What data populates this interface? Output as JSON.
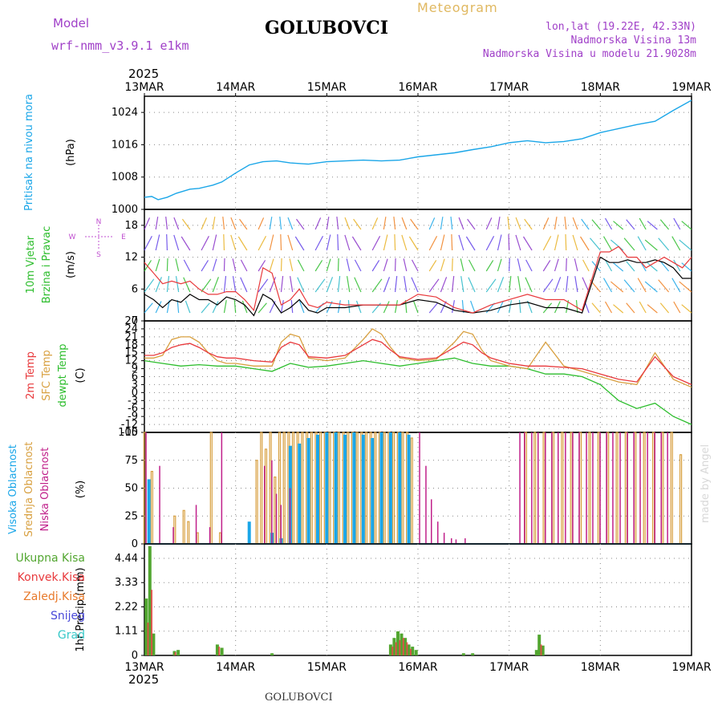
{
  "header": {
    "model_label": "Model",
    "model_name": "wrf-nmm_v3.9.1  e1km",
    "station": "GOLUBOVCI",
    "chart_title": "Meteogram",
    "coords": "lon,lat (19.22E, 42.33N)",
    "elevation": "Nadmorska Visina 13m",
    "model_elevation": "Nadmorska Visina u modelu 21.9028m",
    "year": "2025",
    "credit": "made by Angel",
    "footer_station": "GOLUBOVCI"
  },
  "colors": {
    "pressure": "#1aa6e8",
    "temp2m": "#e8393c",
    "sfc_temp": "#d8a040",
    "dewpoint": "#2cbd2c",
    "wind_speed": "#000000",
    "gust": "#e8393c",
    "high_cloud": "#1aa6e8",
    "mid_cloud": "#d8a040",
    "low_cloud": "#c0208a",
    "total_precip": "#52a630",
    "conv_precip": "#e8393c",
    "frozen_precip": "#e87a2c",
    "snow": "#4848d8",
    "hail": "#38c8c8",
    "compass": "#c050d0"
  },
  "chart_data": [
    {
      "type": "line",
      "panel": "pressure",
      "ylabel": [
        "Pritisak na nivou mora",
        "(hPa)"
      ],
      "ylim": [
        1000,
        1028
      ],
      "yticks": [
        1000,
        1008,
        1016,
        1024
      ],
      "x_categories": [
        "13MAR",
        "14MAR",
        "15MAR",
        "16MAR",
        "17MAR",
        "18MAR",
        "19MAR"
      ],
      "x_days": [
        0,
        6
      ],
      "grid": true,
      "series": [
        {
          "x": [
            0,
            0.08,
            0.15,
            0.25,
            0.35,
            0.5,
            0.6,
            0.75,
            0.85,
            1.0,
            1.15,
            1.3,
            1.45,
            1.6,
            1.8,
            2.0,
            2.2,
            2.4,
            2.6,
            2.8,
            3.0,
            3.2,
            3.4,
            3.6,
            3.8,
            4.0,
            4.2,
            4.4,
            4.6,
            4.8,
            5.0,
            5.2,
            5.4,
            5.6,
            5.8,
            6.0
          ],
          "values": [
            1003.0,
            1003.2,
            1002.4,
            1003.0,
            1004.0,
            1005.0,
            1005.2,
            1006.0,
            1006.8,
            1009.0,
            1011.0,
            1011.8,
            1012.0,
            1011.5,
            1011.2,
            1011.8,
            1012.0,
            1012.2,
            1012.0,
            1012.2,
            1013.0,
            1013.5,
            1014.0,
            1014.8,
            1015.5,
            1016.5,
            1017.0,
            1016.5,
            1016.8,
            1017.5,
            1019.0,
            1020.0,
            1021.0,
            1021.8,
            1024.5,
            1027.0
          ]
        }
      ]
    },
    {
      "type": "line",
      "panel": "wind",
      "ylabel": [
        "10m Vjetar",
        "Brzina i Pravac",
        "(m/s)"
      ],
      "ylim": [
        0,
        21
      ],
      "yticks": [
        0,
        6,
        12,
        18
      ],
      "compass": {
        "n": "N",
        "s": "S",
        "e": "E",
        "w": "W"
      },
      "series": [
        {
          "name": "speed",
          "x": [
            0,
            0.1,
            0.2,
            0.3,
            0.4,
            0.5,
            0.6,
            0.7,
            0.8,
            0.9,
            1.0,
            1.1,
            1.2,
            1.3,
            1.4,
            1.5,
            1.6,
            1.7,
            1.8,
            1.9,
            2.0,
            2.2,
            2.4,
            2.6,
            2.8,
            3.0,
            3.2,
            3.4,
            3.6,
            3.8,
            4.0,
            4.2,
            4.4,
            4.6,
            4.8,
            5.0,
            5.1,
            5.2,
            5.3,
            5.4,
            5.5,
            5.6,
            5.7,
            5.8,
            5.9,
            6.0
          ],
          "values": [
            5,
            4,
            2.5,
            4,
            3.5,
            5,
            4,
            4,
            3,
            4.5,
            4,
            3,
            1,
            5,
            4,
            1.5,
            2.5,
            4,
            2,
            1.5,
            2.5,
            2.5,
            3,
            3,
            3,
            4,
            3.5,
            2,
            1.5,
            2,
            3,
            3.5,
            2.5,
            2.5,
            1.5,
            12,
            11,
            11,
            11.5,
            11,
            11,
            11.5,
            11,
            10,
            8,
            8
          ]
        },
        {
          "name": "gust",
          "x": [
            0,
            0.1,
            0.2,
            0.3,
            0.4,
            0.5,
            0.6,
            0.7,
            0.8,
            0.9,
            1.0,
            1.1,
            1.2,
            1.3,
            1.4,
            1.5,
            1.6,
            1.7,
            1.8,
            1.9,
            2.0,
            2.2,
            2.4,
            2.6,
            2.8,
            3.0,
            3.2,
            3.4,
            3.6,
            3.8,
            4.0,
            4.2,
            4.4,
            4.6,
            4.8,
            5.0,
            5.1,
            5.2,
            5.3,
            5.4,
            5.5,
            5.6,
            5.7,
            5.8,
            5.9,
            6.0
          ],
          "values": [
            11,
            9,
            7,
            7.5,
            7,
            7.5,
            6,
            5,
            5,
            5.5,
            5.5,
            4,
            2,
            10,
            9,
            3,
            4,
            6,
            3,
            2.5,
            3.5,
            3,
            3,
            3,
            3,
            5,
            4.5,
            2.5,
            1.5,
            3,
            4,
            5,
            4,
            4,
            2,
            13,
            13,
            14,
            12,
            12,
            10,
            11,
            12,
            11,
            10,
            12
          ]
        }
      ]
    },
    {
      "type": "line",
      "panel": "temperature",
      "ylabel": [
        "2m Temp",
        "SFC Temp",
        "dewpt Temp",
        "(C)"
      ],
      "ylim": [
        -15,
        27
      ],
      "yticks": [
        -15,
        -12,
        -9,
        -6,
        -3,
        0,
        3,
        6,
        9,
        12,
        15,
        18,
        21,
        24,
        27
      ],
      "series": [
        {
          "name": "2m Temp",
          "x": [
            0,
            0.1,
            0.2,
            0.3,
            0.4,
            0.5,
            0.6,
            0.7,
            0.8,
            0.9,
            1.0,
            1.2,
            1.4,
            1.5,
            1.6,
            1.7,
            1.8,
            2.0,
            2.2,
            2.4,
            2.5,
            2.6,
            2.7,
            2.8,
            3.0,
            3.2,
            3.4,
            3.5,
            3.6,
            3.7,
            3.8,
            4.0,
            4.2,
            4.4,
            4.6,
            4.8,
            5.0,
            5.2,
            5.4,
            5.6,
            5.8,
            6.0
          ],
          "values": [
            14,
            14,
            15,
            17,
            18,
            18.5,
            17,
            15,
            13.5,
            13,
            13,
            12,
            11.5,
            17,
            19,
            18,
            13.5,
            13,
            14,
            18,
            20,
            19,
            16,
            13.5,
            12.5,
            13,
            17,
            19,
            18,
            15,
            13,
            11,
            10,
            10,
            9.5,
            9,
            7,
            5,
            4,
            13.5,
            6,
            3
          ]
        },
        {
          "name": "SFC Temp",
          "x": [
            0,
            0.1,
            0.2,
            0.3,
            0.4,
            0.5,
            0.6,
            0.7,
            0.8,
            0.9,
            1.0,
            1.2,
            1.4,
            1.5,
            1.6,
            1.7,
            1.8,
            2.0,
            2.2,
            2.4,
            2.5,
            2.6,
            2.7,
            2.8,
            3.0,
            3.2,
            3.4,
            3.5,
            3.6,
            3.7,
            3.8,
            4.0,
            4.2,
            4.4,
            4.6,
            4.8,
            5.0,
            5.2,
            5.4,
            5.6,
            5.8,
            6.0
          ],
          "values": [
            13,
            13,
            14,
            20,
            21,
            21,
            19,
            15,
            12,
            11,
            11,
            10,
            10,
            19,
            22,
            21,
            13,
            12,
            13,
            20,
            24,
            22,
            17,
            13,
            12,
            12.5,
            19,
            23,
            22,
            16,
            12,
            10,
            9,
            19,
            10,
            8,
            6,
            4,
            3,
            15,
            5,
            2
          ]
        },
        {
          "name": "dewpt Temp",
          "x": [
            0,
            0.2,
            0.4,
            0.6,
            0.8,
            1.0,
            1.2,
            1.4,
            1.6,
            1.8,
            2.0,
            2.2,
            2.4,
            2.6,
            2.8,
            3.0,
            3.2,
            3.4,
            3.6,
            3.8,
            4.0,
            4.2,
            4.4,
            4.6,
            4.8,
            5.0,
            5.2,
            5.4,
            5.6,
            5.8,
            6.0
          ],
          "values": [
            12,
            11,
            10,
            10.5,
            10,
            10,
            9,
            8,
            11,
            9.5,
            10,
            11,
            12,
            11,
            10,
            11,
            12,
            13,
            11,
            10,
            10,
            9,
            7,
            7,
            6,
            3,
            -3,
            -6,
            -4,
            -9,
            -12
          ]
        }
      ]
    },
    {
      "type": "bar",
      "panel": "cloud",
      "ylabel": [
        "Visoka Oblacnost",
        "Srednja Oblacnost",
        "Niska Oblacnost",
        "(%)"
      ],
      "ylim": [
        0,
        100
      ],
      "yticks": [
        0,
        25,
        50,
        75,
        100
      ],
      "series": [
        {
          "name": "Visoka Oblacnost",
          "x": [
            0.05,
            1.15,
            1.4,
            1.5,
            1.6,
            1.7,
            1.8,
            1.9,
            2.0,
            2.1,
            2.2,
            2.3,
            2.4,
            2.5,
            2.6,
            2.7,
            2.8,
            2.9
          ],
          "values": [
            58,
            20,
            10,
            5,
            88,
            90,
            95,
            98,
            100,
            100,
            98,
            100,
            98,
            95,
            100,
            100,
            100,
            98
          ]
        },
        {
          "name": "Srednja Oblacnost",
          "x": [
            0.02,
            0.1,
            0.35,
            0.45,
            0.5,
            0.6,
            0.75,
            0.85,
            1.25,
            1.3,
            1.35,
            1.4,
            1.45,
            1.5,
            1.55,
            1.6,
            1.65,
            1.7,
            1.75,
            1.8,
            1.85,
            1.9,
            1.95,
            2.0,
            2.05,
            2.1,
            2.15,
            2.2,
            2.25,
            2.3,
            2.35,
            2.4,
            2.45,
            2.5,
            2.55,
            2.6,
            2.65,
            2.7,
            2.75,
            2.8,
            2.85,
            2.9,
            2.95,
            4.2,
            4.3,
            4.4,
            4.5,
            4.6,
            4.7,
            4.8,
            4.9,
            5.0,
            5.1,
            5.2,
            5.3,
            5.4,
            5.5,
            5.6,
            5.7,
            5.8,
            5.9
          ],
          "values": [
            100,
            65,
            25,
            30,
            20,
            10,
            100,
            10,
            75,
            100,
            85,
            100,
            60,
            100,
            100,
            100,
            100,
            100,
            100,
            100,
            100,
            100,
            100,
            100,
            100,
            100,
            100,
            100,
            100,
            100,
            100,
            100,
            100,
            100,
            100,
            100,
            100,
            100,
            100,
            100,
            100,
            100,
            95,
            100,
            100,
            100,
            100,
            100,
            100,
            100,
            100,
            100,
            100,
            100,
            100,
            100,
            100,
            100,
            100,
            100,
            80
          ]
        },
        {
          "name": "Niska Oblacnost",
          "x": [
            0.0,
            0.15,
            0.3,
            0.55,
            0.7,
            0.83,
            1.3,
            1.38,
            1.43,
            1.48,
            1.58,
            3.0,
            3.07,
            3.13,
            3.2,
            3.27,
            3.35,
            3.4,
            3.5,
            4.1,
            4.15,
            4.23,
            4.3,
            4.38,
            4.45,
            4.52,
            4.6,
            4.68,
            4.75,
            4.83,
            4.9,
            4.98,
            5.05,
            5.12,
            5.2,
            5.28,
            5.35,
            5.42,
            5.5,
            5.58,
            5.65,
            5.72
          ],
          "values": [
            100,
            70,
            15,
            35,
            15,
            100,
            70,
            75,
            45,
            35,
            50,
            100,
            70,
            40,
            20,
            10,
            5,
            4,
            5,
            100,
            100,
            100,
            100,
            100,
            100,
            100,
            100,
            100,
            100,
            100,
            100,
            100,
            100,
            100,
            100,
            100,
            100,
            100,
            100,
            100,
            100,
            100
          ]
        }
      ]
    },
    {
      "type": "bar",
      "panel": "precipitation",
      "ylabel": [
        "1hr Precip (mm)"
      ],
      "legend": [
        "Ukupna Kisa",
        "Konvek.Kisa",
        "Zaledj.Kisa",
        "Snijeg",
        "Grad"
      ],
      "ylim": [
        0,
        5.1
      ],
      "yticks": [
        0,
        1.11,
        2.22,
        3.33,
        4.44
      ],
      "bottom_x_categories": [
        "13MAR",
        "14MAR",
        "15MAR",
        "16MAR",
        "17MAR",
        "18MAR",
        "19MAR"
      ],
      "series": [
        {
          "name": "Ukupna Kisa",
          "x": [
            0.02,
            0.06,
            0.1,
            0.33,
            0.37,
            0.8,
            0.85,
            1.4,
            2.7,
            2.74,
            2.78,
            2.82,
            2.86,
            2.9,
            2.94,
            2.98,
            3.5,
            3.6,
            4.3,
            4.33,
            4.37
          ],
          "values": [
            2.6,
            5.0,
            1.0,
            0.2,
            0.25,
            0.5,
            0.35,
            0.1,
            0.5,
            0.8,
            1.1,
            1.0,
            0.8,
            0.5,
            0.4,
            0.25,
            0.1,
            0.1,
            0.25,
            0.95,
            0.45
          ]
        },
        {
          "name": "Konvek.Kisa",
          "x": [
            0.04,
            0.08,
            0.34,
            0.82,
            2.72,
            2.76,
            2.8,
            2.84,
            2.88,
            2.92,
            4.35
          ],
          "values": [
            1.5,
            3.0,
            0.15,
            0.4,
            0.4,
            0.6,
            0.7,
            0.8,
            0.6,
            0.3,
            0.5
          ]
        }
      ]
    }
  ]
}
